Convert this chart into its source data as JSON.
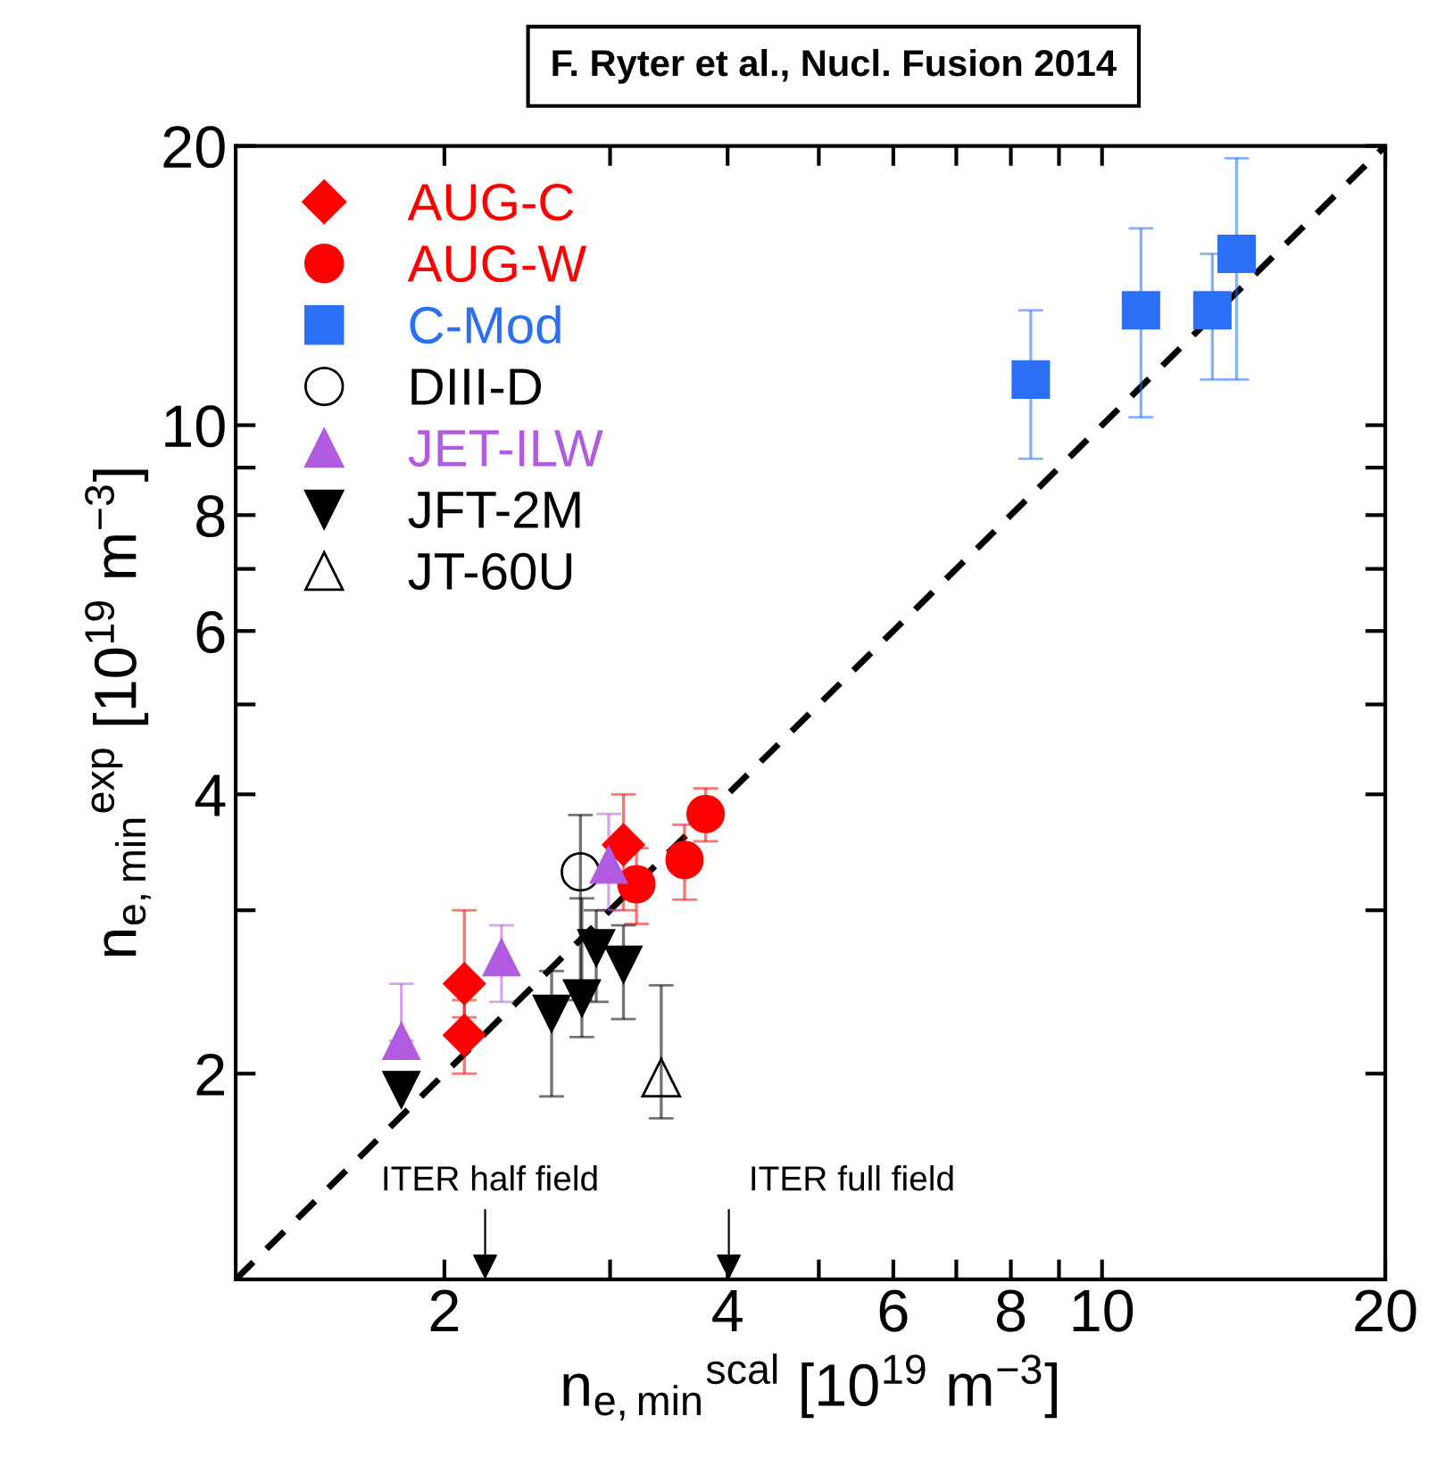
{
  "chart_data": {
    "type": "scatter",
    "title": "F. Ryter et al., Nucl. Fusion 2014",
    "xlabel": "n$_{e,min}$$^{scal}$ [10$^{19}$ m$^{−3}$]",
    "ylabel": "n$_{e,min}$$^{exp}$ [10$^{19}$ m$^{−3}$]",
    "log": "xy",
    "xlim": [
      1.2,
      20
    ],
    "ylim": [
      1.2,
      20
    ],
    "xticks": [
      2,
      {
        "value": 3,
        "label": null
      },
      4,
      {
        "value": 5,
        "label": null
      },
      6,
      {
        "value": 7,
        "label": null
      },
      8,
      {
        "value": 9,
        "label": null
      },
      10,
      20
    ],
    "yticks": [
      2,
      {
        "value": 3,
        "label": null
      },
      4,
      {
        "value": 5,
        "label": null
      },
      6,
      {
        "value": 7,
        "label": null
      },
      8,
      {
        "value": 9,
        "label": null
      },
      10,
      20
    ],
    "legend": "top left",
    "series": [
      {
        "name": "AUG-C",
        "color": "#ff0000",
        "marker": "diamond",
        "x": [
          2.1,
          2.1,
          3.1
        ],
        "values": [
          2.5,
          2.2,
          3.53
        ],
        "errors": [
          [
            2.3,
            3.0
          ],
          [
            2.0,
            2.4
          ],
          [
            3.0,
            4.0
          ]
        ]
      },
      {
        "name": "AUG-W",
        "color": "#ff0000",
        "marker": "circle",
        "x": [
          3.2,
          3.6,
          3.79
        ],
        "values": [
          3.2,
          3.4,
          3.81
        ],
        "errors": [
          [
            2.9,
            3.5
          ],
          [
            3.08,
            3.71
          ],
          [
            3.56,
            4.06
          ]
        ]
      },
      {
        "name": "C-Mod",
        "color": "#2b6ff5",
        "marker": "square",
        "x": [
          8.4,
          11.0,
          13.1,
          13.9
        ],
        "values": [
          11.2,
          13.3,
          13.3,
          15.3
        ],
        "errors": [
          [
            9.2,
            13.3
          ],
          [
            10.2,
            16.3
          ],
          [
            11.2,
            15.3
          ],
          [
            11.2,
            19.4
          ]
        ]
      },
      {
        "name": "DIII-D",
        "color": "#000000",
        "marker": "circle-open",
        "x": [
          2.79
        ],
        "values": [
          3.3
        ],
        "errors": [
          [
            2.4,
            3.8
          ]
        ]
      },
      {
        "name": "JET-ILW",
        "color": "#b15ce0",
        "marker": "triangle",
        "x": [
          1.8,
          2.3,
          2.99
        ],
        "values": [
          2.17,
          2.67,
          3.36
        ],
        "errors": [
          [
            2.17,
            2.5
          ],
          [
            2.39,
            2.89
          ],
          [
            3.0,
            3.81
          ]
        ]
      },
      {
        "name": "JFT-2M",
        "color": "#000000",
        "marker": "triangle-down",
        "x": [
          1.8,
          2.6,
          2.8,
          2.9,
          3.1
        ],
        "values": [
          1.92,
          2.32,
          2.41,
          2.73,
          2.62
        ],
        "errors": [
          null,
          [
            1.89,
            2.58
          ],
          [
            2.19,
            3.09
          ],
          [
            2.39,
            3.0
          ],
          [
            2.29,
            2.89
          ]
        ]
      },
      {
        "name": "JT-60U",
        "color": "#000000",
        "marker": "triangle-open",
        "x": [
          3.4
        ],
        "values": [
          1.98
        ],
        "errors": [
          [
            1.79,
            2.49
          ]
        ]
      },
      {
        "type": "line",
        "color": "#000000",
        "line_style": "dashed",
        "marker": "none",
        "x": [
          1.2,
          20
        ],
        "values": [
          1.2,
          20
        ]
      }
    ],
    "annotations": [
      "ITER half field",
      "ITER full field"
    ]
  }
}
